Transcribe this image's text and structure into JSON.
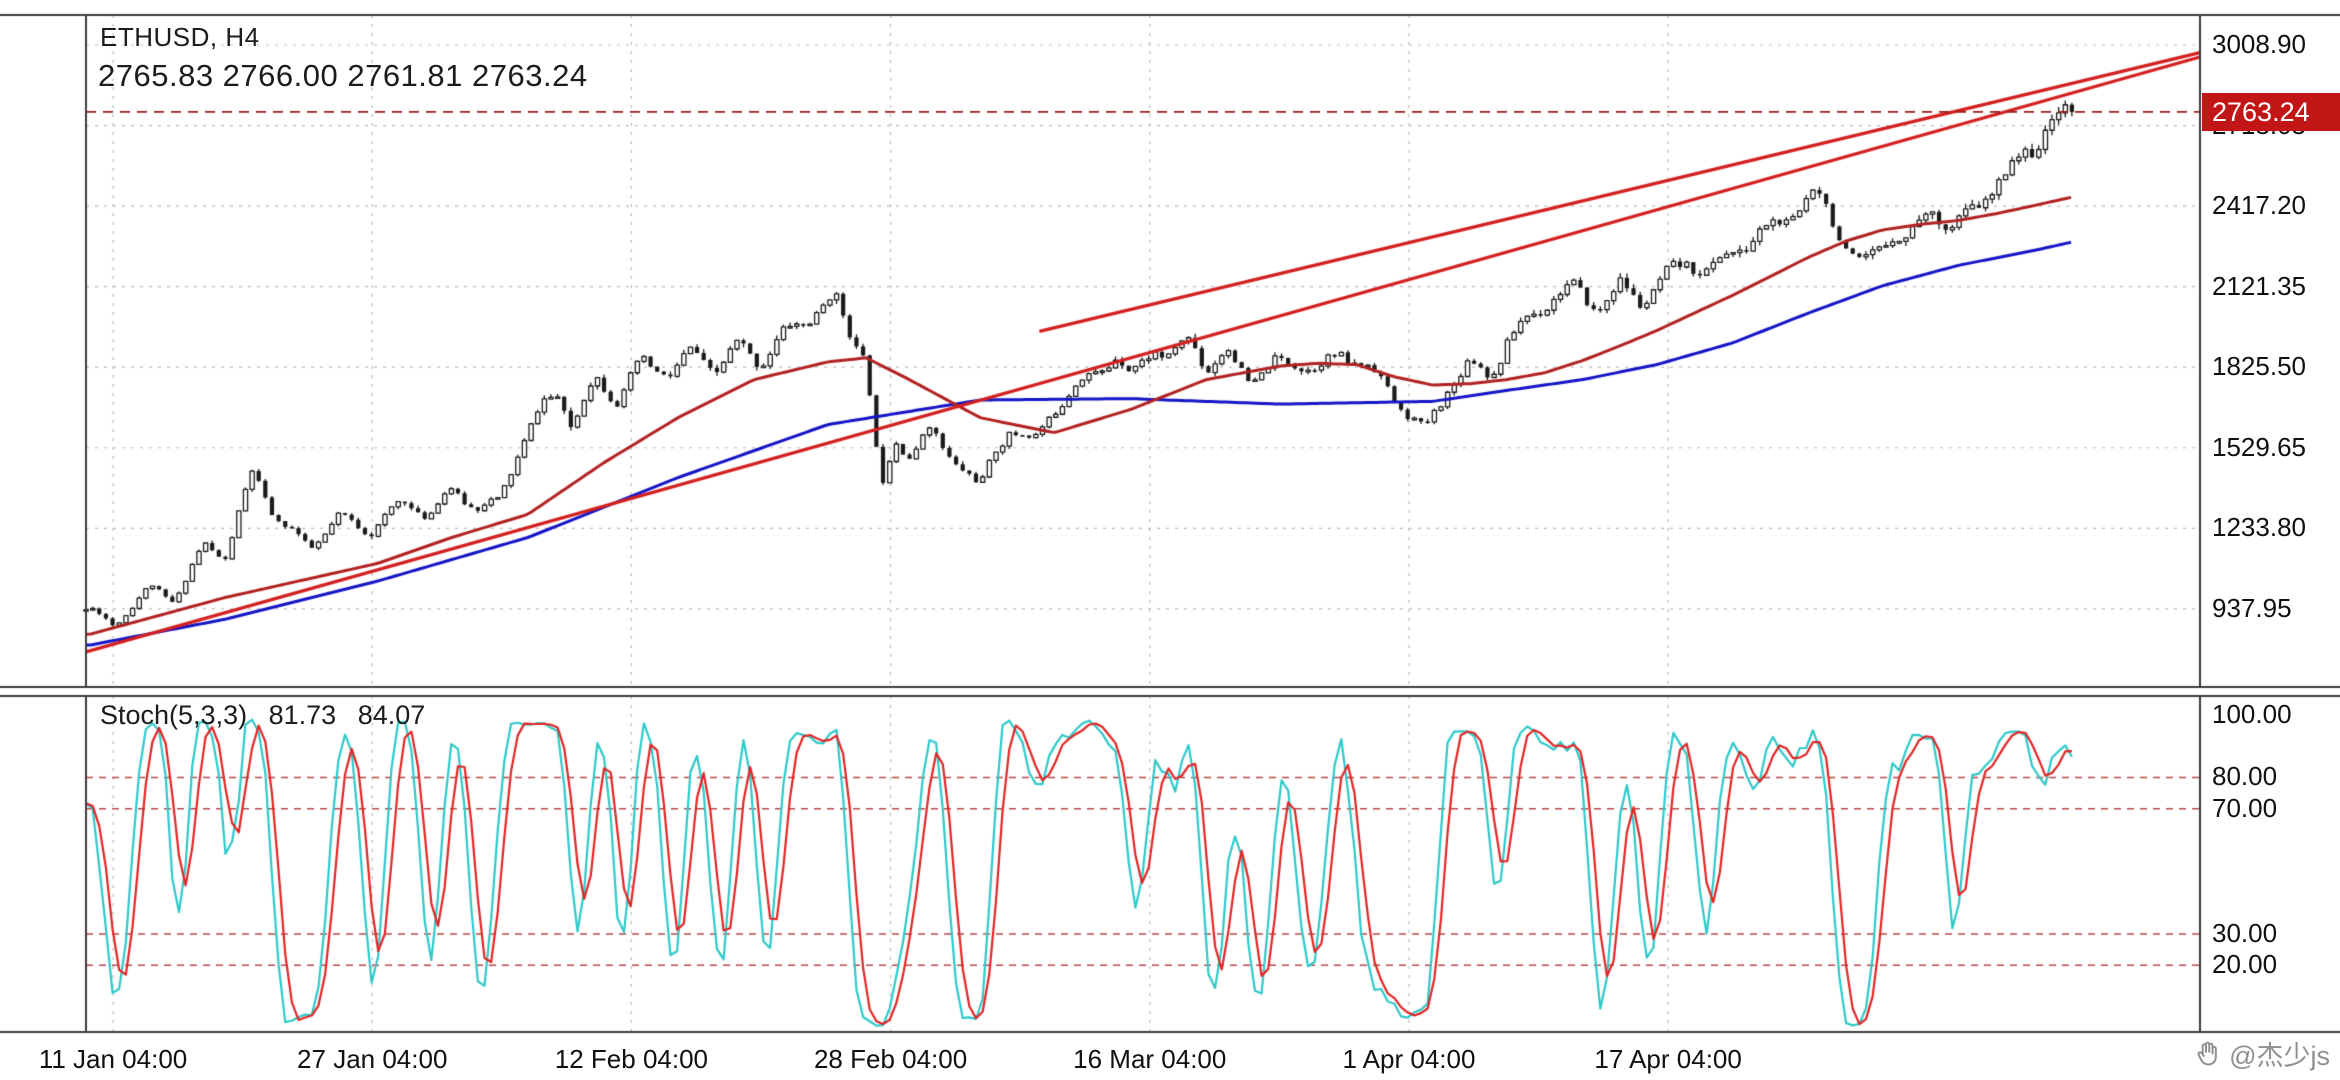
{
  "header": {
    "symbol_timeframe": "ETHUSD, H4",
    "ohlc_line": "2765.83 2766.00 2761.81 2763.24"
  },
  "price_badge": "2763.24",
  "watermark": {
    "text": "@杰少js",
    "icon": "hand-icon"
  },
  "colors": {
    "candle": "#1a1a1a",
    "ma_fast": "#b22222",
    "ma_slow": "#1515c8",
    "trendline": "#d42020",
    "grid": "#bdbdbd",
    "price_line": "#9b1c1c",
    "badge_bg": "#c21616",
    "badge_text": "#ffffff",
    "stoch_main": "#2fc9c9",
    "stoch_signal": "#e22626",
    "stoch_levels": "#b84848",
    "axis_text": "#101010"
  },
  "chart_data": {
    "type": "candlestick",
    "symbol": "ETHUSD",
    "timeframe": "H4",
    "title": "ETHUSD, H4",
    "last_bar": {
      "open": 2765.83,
      "high": 2766.0,
      "low": 2761.81,
      "close": 2763.24
    },
    "current_price": 2763.24,
    "x_axis": {
      "labels": [
        "11 Jan 04:00",
        "27 Jan 04:00",
        "12 Feb 04:00",
        "28 Feb 04:00",
        "16 Mar 04:00",
        "1 Apr 04:00",
        "17 Apr 04:00"
      ],
      "fracs": [
        0.0128,
        0.1354,
        0.258,
        0.3806,
        0.5032,
        0.6258,
        0.7484
      ]
    },
    "y_axis": {
      "ticks": [
        3008.9,
        2713.05,
        2417.2,
        2121.35,
        1825.5,
        1529.65,
        1233.8,
        937.95
      ],
      "range_top": 3119,
      "range_bottom": 651
    },
    "price_path": [
      [
        0.002,
        930
      ],
      [
        0.013,
        875
      ],
      [
        0.031,
        1020
      ],
      [
        0.042,
        975
      ],
      [
        0.056,
        1180
      ],
      [
        0.066,
        1130
      ],
      [
        0.079,
        1440
      ],
      [
        0.09,
        1260
      ],
      [
        0.106,
        1160
      ],
      [
        0.12,
        1280
      ],
      [
        0.135,
        1230
      ],
      [
        0.15,
        1340
      ],
      [
        0.162,
        1270
      ],
      [
        0.173,
        1370
      ],
      [
        0.185,
        1300
      ],
      [
        0.195,
        1330
      ],
      [
        0.205,
        1530
      ],
      [
        0.216,
        1695
      ],
      [
        0.223,
        1740
      ],
      [
        0.23,
        1615
      ],
      [
        0.241,
        1780
      ],
      [
        0.252,
        1695
      ],
      [
        0.262,
        1830
      ],
      [
        0.277,
        1800
      ],
      [
        0.287,
        1885
      ],
      [
        0.298,
        1830
      ],
      [
        0.309,
        1915
      ],
      [
        0.319,
        1850
      ],
      [
        0.33,
        1940
      ],
      [
        0.341,
        1995
      ],
      [
        0.354,
        2065
      ],
      [
        0.362,
        1940
      ],
      [
        0.369,
        1860
      ],
      [
        0.376,
        1370
      ],
      [
        0.383,
        1560
      ],
      [
        0.391,
        1510
      ],
      [
        0.398,
        1615
      ],
      [
        0.405,
        1530
      ],
      [
        0.416,
        1450
      ],
      [
        0.423,
        1370
      ],
      [
        0.43,
        1510
      ],
      [
        0.437,
        1590
      ],
      [
        0.448,
        1540
      ],
      [
        0.458,
        1680
      ],
      [
        0.469,
        1760
      ],
      [
        0.476,
        1815
      ],
      [
        0.487,
        1870
      ],
      [
        0.494,
        1790
      ],
      [
        0.505,
        1900
      ],
      [
        0.512,
        1845
      ],
      [
        0.523,
        1925
      ],
      [
        0.53,
        1815
      ],
      [
        0.54,
        1870
      ],
      [
        0.551,
        1790
      ],
      [
        0.562,
        1845
      ],
      [
        0.572,
        1855
      ],
      [
        0.583,
        1815
      ],
      [
        0.594,
        1870
      ],
      [
        0.605,
        1820
      ],
      [
        0.615,
        1750
      ],
      [
        0.622,
        1680
      ],
      [
        0.633,
        1590
      ],
      [
        0.644,
        1760
      ],
      [
        0.654,
        1845
      ],
      [
        0.665,
        1800
      ],
      [
        0.672,
        1915
      ],
      [
        0.683,
        1995
      ],
      [
        0.694,
        2075
      ],
      [
        0.704,
        2105
      ],
      [
        0.715,
        2050
      ],
      [
        0.726,
        2130
      ],
      [
        0.736,
        2080
      ],
      [
        0.747,
        2160
      ],
      [
        0.758,
        2215
      ],
      [
        0.768,
        2160
      ],
      [
        0.779,
        2240
      ],
      [
        0.79,
        2295
      ],
      [
        0.8,
        2350
      ],
      [
        0.811,
        2430
      ],
      [
        0.818,
        2485
      ],
      [
        0.825,
        2405
      ],
      [
        0.833,
        2270
      ],
      [
        0.84,
        2185
      ],
      [
        0.847,
        2240
      ],
      [
        0.854,
        2320
      ],
      [
        0.861,
        2270
      ],
      [
        0.868,
        2350
      ],
      [
        0.875,
        2405
      ],
      [
        0.882,
        2330
      ],
      [
        0.89,
        2380
      ],
      [
        0.897,
        2460
      ],
      [
        0.904,
        2515
      ],
      [
        0.911,
        2570
      ],
      [
        0.918,
        2625
      ],
      [
        0.925,
        2680
      ],
      [
        0.932,
        2735
      ],
      [
        0.9394,
        2763.24
      ]
    ],
    "ma_slow": {
      "name": "moving-average-slow-blue",
      "points": [
        [
          0.002,
          805
        ],
        [
          0.066,
          900
        ],
        [
          0.138,
          1040
        ],
        [
          0.209,
          1200
        ],
        [
          0.28,
          1420
        ],
        [
          0.351,
          1615
        ],
        [
          0.423,
          1705
        ],
        [
          0.494,
          1710
        ],
        [
          0.565,
          1690
        ],
        [
          0.637,
          1700
        ],
        [
          0.672,
          1740
        ],
        [
          0.708,
          1780
        ],
        [
          0.743,
          1835
        ],
        [
          0.779,
          1915
        ],
        [
          0.815,
          2025
        ],
        [
          0.85,
          2125
        ],
        [
          0.886,
          2200
        ],
        [
          0.922,
          2255
        ],
        [
          0.9394,
          2285
        ]
      ]
    },
    "ma_fast": {
      "name": "moving-average-fast-red",
      "points": [
        [
          0.002,
          845
        ],
        [
          0.066,
          980
        ],
        [
          0.138,
          1105
        ],
        [
          0.173,
          1200
        ],
        [
          0.209,
          1285
        ],
        [
          0.245,
          1475
        ],
        [
          0.28,
          1640
        ],
        [
          0.316,
          1780
        ],
        [
          0.351,
          1845
        ],
        [
          0.369,
          1860
        ],
        [
          0.387,
          1790
        ],
        [
          0.423,
          1640
        ],
        [
          0.458,
          1585
        ],
        [
          0.494,
          1670
        ],
        [
          0.53,
          1780
        ],
        [
          0.565,
          1830
        ],
        [
          0.583,
          1840
        ],
        [
          0.601,
          1835
        ],
        [
          0.619,
          1790
        ],
        [
          0.637,
          1760
        ],
        [
          0.655,
          1765
        ],
        [
          0.672,
          1780
        ],
        [
          0.69,
          1805
        ],
        [
          0.708,
          1850
        ],
        [
          0.726,
          1905
        ],
        [
          0.743,
          1960
        ],
        [
          0.761,
          2025
        ],
        [
          0.779,
          2090
        ],
        [
          0.797,
          2160
        ],
        [
          0.815,
          2230
        ],
        [
          0.833,
          2290
        ],
        [
          0.85,
          2330
        ],
        [
          0.868,
          2350
        ],
        [
          0.886,
          2365
        ],
        [
          0.904,
          2390
        ],
        [
          0.922,
          2420
        ],
        [
          0.9394,
          2450
        ]
      ]
    },
    "trendlines": [
      [
        [
          0.0,
          780
        ],
        [
          1.0,
          2965
        ]
      ],
      [
        [
          0.451,
          1957
        ],
        [
          1.0,
          2981
        ]
      ]
    ],
    "candles_synth": {
      "count": 300,
      "span_frac": 0.9394,
      "seed": 11,
      "wave_amp": 0.012,
      "noise_amp": 0.007,
      "wick_amp": 0.008
    },
    "stoch": {
      "label": "Stoch(5,3,3)",
      "main_value": "81.73",
      "signal_value": "84.07",
      "k": 5,
      "slowing": 3,
      "d": 3,
      "levels": [
        80,
        70,
        30,
        20
      ],
      "axis_ticks": [
        100,
        80,
        70,
        30,
        20
      ],
      "range_top": 106,
      "range_bottom": -1.3
    }
  }
}
